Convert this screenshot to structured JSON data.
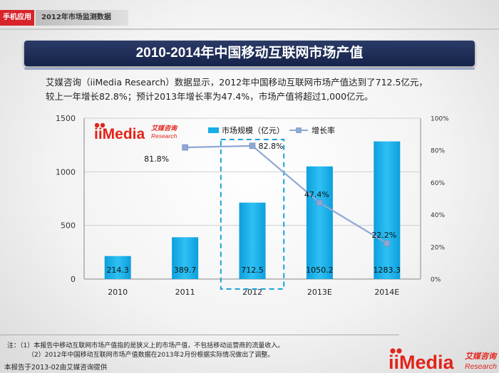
{
  "header": {
    "category": "手机应用",
    "report": "2012年市场监测数据"
  },
  "title": "2010-2014年中国移动互联网市场产值",
  "description": {
    "line1": "艾媒咨询（iiMedia Research）数据显示，2012年中国移动互联网市场产值达到了712.5亿元，",
    "line2": "较上一年增长82.8%；预计2013年增长率为47.4%，市场产值将超过1,000亿元。"
  },
  "logo": {
    "brand": "iiMedia",
    "cn": "艾媒咨询",
    "en": "Research"
  },
  "chart_data": {
    "type": "bar",
    "categories": [
      "2010",
      "2011",
      "2012",
      "2013E",
      "2014E"
    ],
    "series": [
      {
        "name": "市场规模（亿元）",
        "type": "bar",
        "axis": "left",
        "values": [
          214.3,
          389.7,
          712.5,
          1050.2,
          1283.3
        ],
        "labels": [
          "214.3",
          "389.7",
          "712.5",
          "1050.2",
          "1283.3"
        ],
        "color": "#16aee8"
      },
      {
        "name": "增长率",
        "type": "line",
        "axis": "right",
        "values": [
          null,
          81.8,
          82.8,
          47.4,
          22.2
        ],
        "labels": [
          "",
          "81.8%",
          "82.8%",
          "47.4%",
          "22.2%"
        ],
        "color": "#8fa8d4"
      }
    ],
    "y_left": {
      "range": [
        0,
        1500
      ],
      "ticks": [
        "0",
        "500",
        "1000",
        "1500"
      ]
    },
    "y_right": {
      "range": [
        0,
        100
      ],
      "ticks": [
        "0%",
        "20%",
        "40%",
        "60%",
        "80%",
        "100%"
      ]
    },
    "highlight_category": "2012",
    "legend": "top"
  },
  "notes": {
    "n1": "注：（1）本报告中移动互联网市场产值指的是狭义上的市场产值，不包括移动运营商的流量收入。",
    "n2": "（2）2012年中国移动互联网市场产值数据在2013年2月份根据实际情况做出了调整。"
  },
  "footer": "本报告于2013-02由艾媒咨询提供"
}
